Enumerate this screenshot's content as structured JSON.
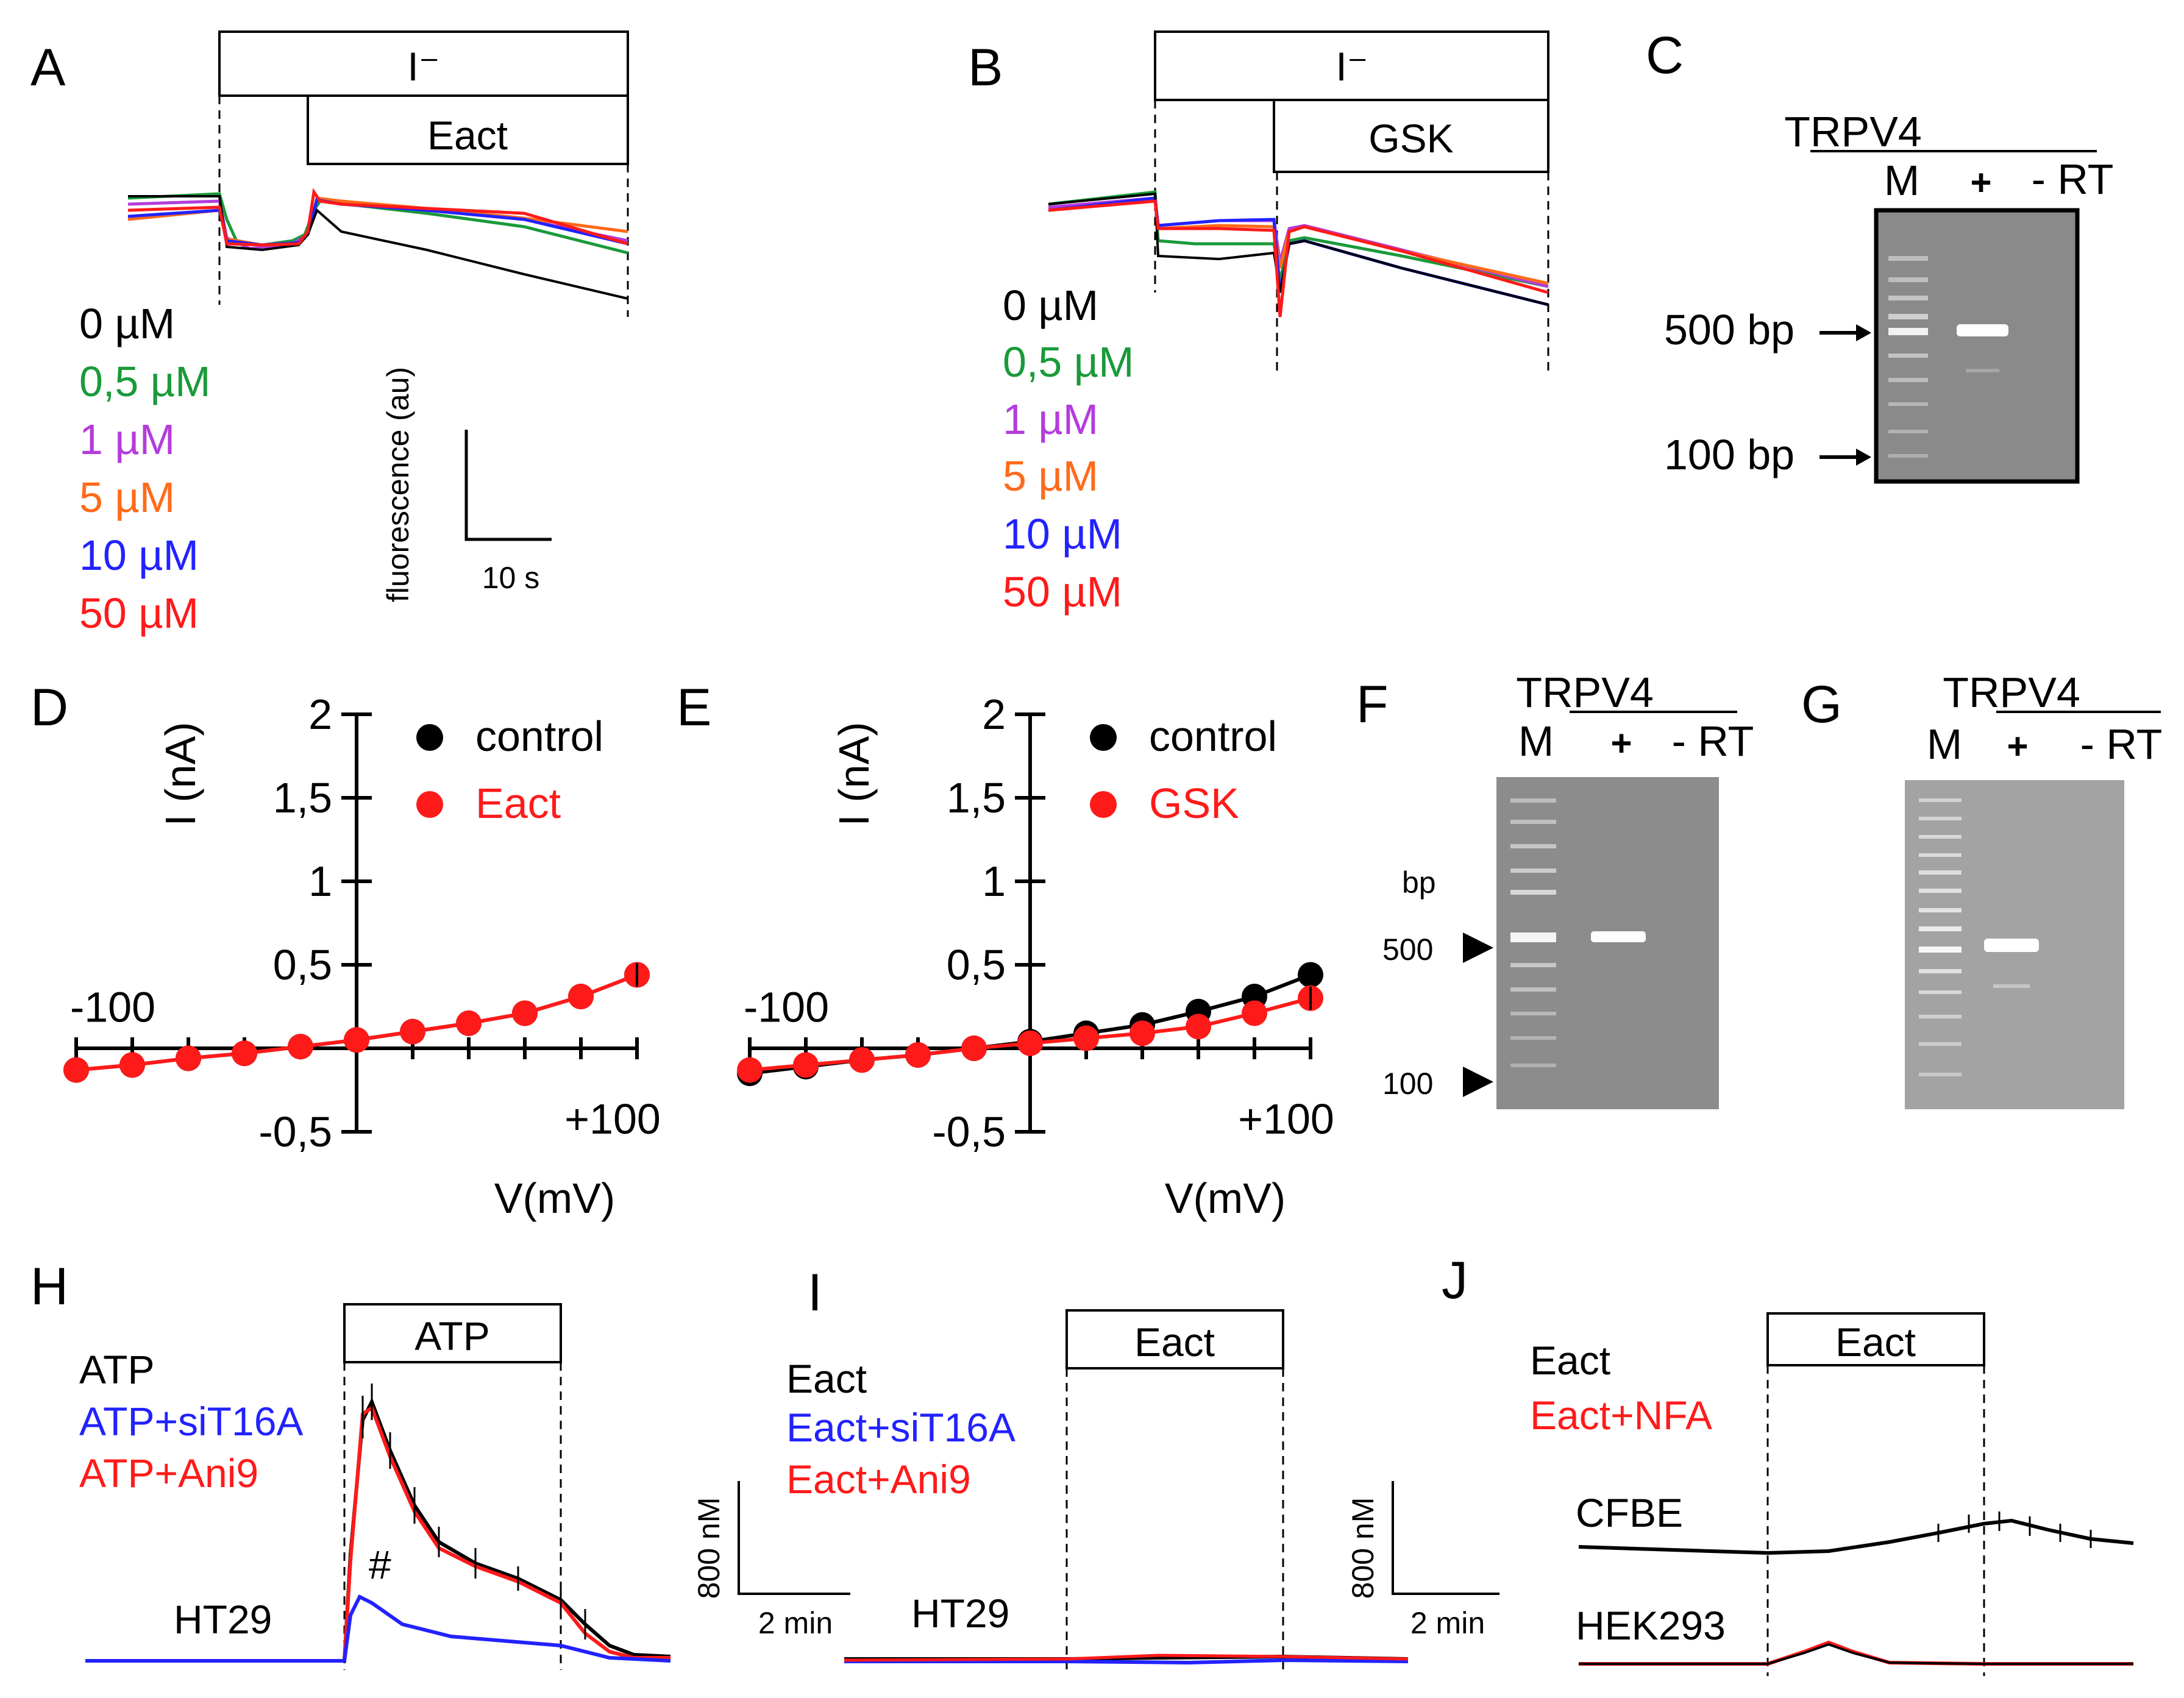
{
  "figure": {
    "panels": {
      "A": "A",
      "B": "B",
      "C": "C",
      "D": "D",
      "E": "E",
      "F": "F",
      "G": "G",
      "H": "H",
      "I": "I",
      "J": "J"
    },
    "panel_a": {
      "bar_top": "I⁻",
      "bar_bottom": "Eact",
      "legend": [
        "0 µM",
        "0,5 µM",
        "1 µM",
        "5 µM",
        "10 µM",
        "50 µM"
      ],
      "scale_y": "fluorescence (au)",
      "scale_x": "10 s"
    },
    "panel_b": {
      "bar_top": "I⁻",
      "bar_bottom": "GSK",
      "legend": [
        "0 µM",
        "0,5 µM",
        "1 µM",
        "5 µM",
        "10 µM",
        "50 µM"
      ]
    },
    "panel_c": {
      "gene": "TRPV4",
      "lane_m": "M",
      "lane_plus": "+",
      "lane_minus": "- RT",
      "marker_500": "500 bp",
      "marker_100": "100 bp"
    },
    "panel_f": {
      "gene": "TRPV4",
      "lane_m": "M",
      "lane_plus": "+",
      "lane_minus": "- RT",
      "bp": "bp",
      "marker_500": "500",
      "marker_100": "100"
    },
    "panel_g": {
      "gene": "TRPV4",
      "lane_m": "M",
      "lane_plus": "+",
      "lane_minus": "- RT"
    },
    "panel_h": {
      "bar": "ATP",
      "legend": [
        "ATP",
        "ATP+siT16A",
        "ATP+Ani9"
      ],
      "cell": "HT29",
      "mark": "#"
    },
    "panel_i": {
      "bar": "Eact",
      "legend": [
        "Eact",
        "Eact+siT16A",
        "Eact+Ani9"
      ],
      "cell": "HT29",
      "scale_y": "800 nM",
      "scale_x": "2 min",
      "scale2_y": "800 nM",
      "scale2_x": "2 min"
    },
    "panel_j": {
      "bar": "Eact",
      "legend": [
        "Eact",
        "Eact+NFA"
      ],
      "cell1": "CFBE",
      "cell2": "HEK293"
    }
  },
  "colors": {
    "black": "#000000",
    "green": "#1a9a3a",
    "purple": "#b43cdc",
    "orange": "#ff6a1a",
    "blue": "#2222ff",
    "red": "#ff1a1a"
  },
  "chart_data": [
    {
      "type": "scatter",
      "title": "D",
      "xlabel": "V(mV)",
      "ylabel": "I (nA)",
      "xlim": [
        -100,
        100
      ],
      "ylim": [
        -0.5,
        2
      ],
      "x_tick_labels": [
        "-100",
        "+100"
      ],
      "y_tick_labels": [
        "-0,5",
        "0,5",
        "1",
        "1,5",
        "2"
      ],
      "x": [
        -100,
        -80,
        -60,
        -40,
        -20,
        0,
        20,
        40,
        60,
        80,
        100
      ],
      "series": [
        {
          "name": "control",
          "values": [
            -0.13,
            -0.1,
            -0.06,
            -0.03,
            0.01,
            0.05,
            0.1,
            0.15,
            0.21,
            0.31,
            0.44
          ]
        },
        {
          "name": "Eact",
          "values": [
            -0.13,
            -0.1,
            -0.06,
            -0.03,
            0.01,
            0.05,
            0.1,
            0.15,
            0.21,
            0.31,
            0.44
          ]
        }
      ]
    },
    {
      "type": "scatter",
      "title": "E",
      "xlabel": "V(mV)",
      "ylabel": "I (nA)",
      "xlim": [
        -100,
        100
      ],
      "ylim": [
        -0.5,
        2
      ],
      "x_tick_labels": [
        "-100",
        "+100"
      ],
      "y_tick_labels": [
        "-0,5",
        "0,5",
        "1",
        "1,5",
        "2"
      ],
      "x": [
        -100,
        -80,
        -60,
        -40,
        -20,
        0,
        20,
        40,
        60,
        80,
        100
      ],
      "series": [
        {
          "name": "control",
          "values": [
            -0.15,
            -0.11,
            -0.07,
            -0.04,
            0.0,
            0.04,
            0.09,
            0.14,
            0.22,
            0.31,
            0.44
          ]
        },
        {
          "name": "GSK",
          "values": [
            -0.13,
            -0.1,
            -0.07,
            -0.04,
            0.0,
            0.03,
            0.06,
            0.09,
            0.13,
            0.21,
            0.3
          ]
        }
      ]
    }
  ]
}
